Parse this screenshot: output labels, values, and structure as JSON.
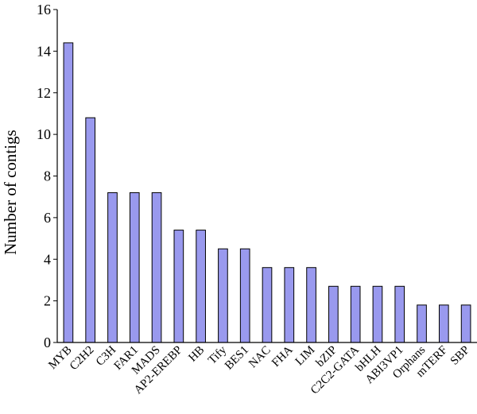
{
  "chart_data": {
    "type": "bar",
    "title": "",
    "xlabel": "",
    "ylabel": "Number of contigs",
    "ylim": [
      0,
      16
    ],
    "yticks": [
      0,
      2,
      4,
      6,
      8,
      10,
      12,
      14,
      16
    ],
    "grid": false,
    "bar_color": "#9999ee",
    "categories": [
      "MYB",
      "C2H2",
      "C3H",
      "FAR1",
      "MADS",
      "AP2-EREBP",
      "HB",
      "Tify",
      "BES1",
      "NAC",
      "FHA",
      "LIM",
      "bZIP",
      "C2C2-GATA",
      "bHLH",
      "ABI3VP1",
      "Orphans",
      "mTERF",
      "SBP"
    ],
    "values": [
      14.4,
      10.8,
      7.2,
      7.2,
      7.2,
      5.4,
      5.4,
      4.5,
      4.5,
      3.6,
      3.6,
      3.6,
      2.7,
      2.7,
      2.7,
      2.7,
      1.8,
      1.8,
      1.8
    ]
  }
}
